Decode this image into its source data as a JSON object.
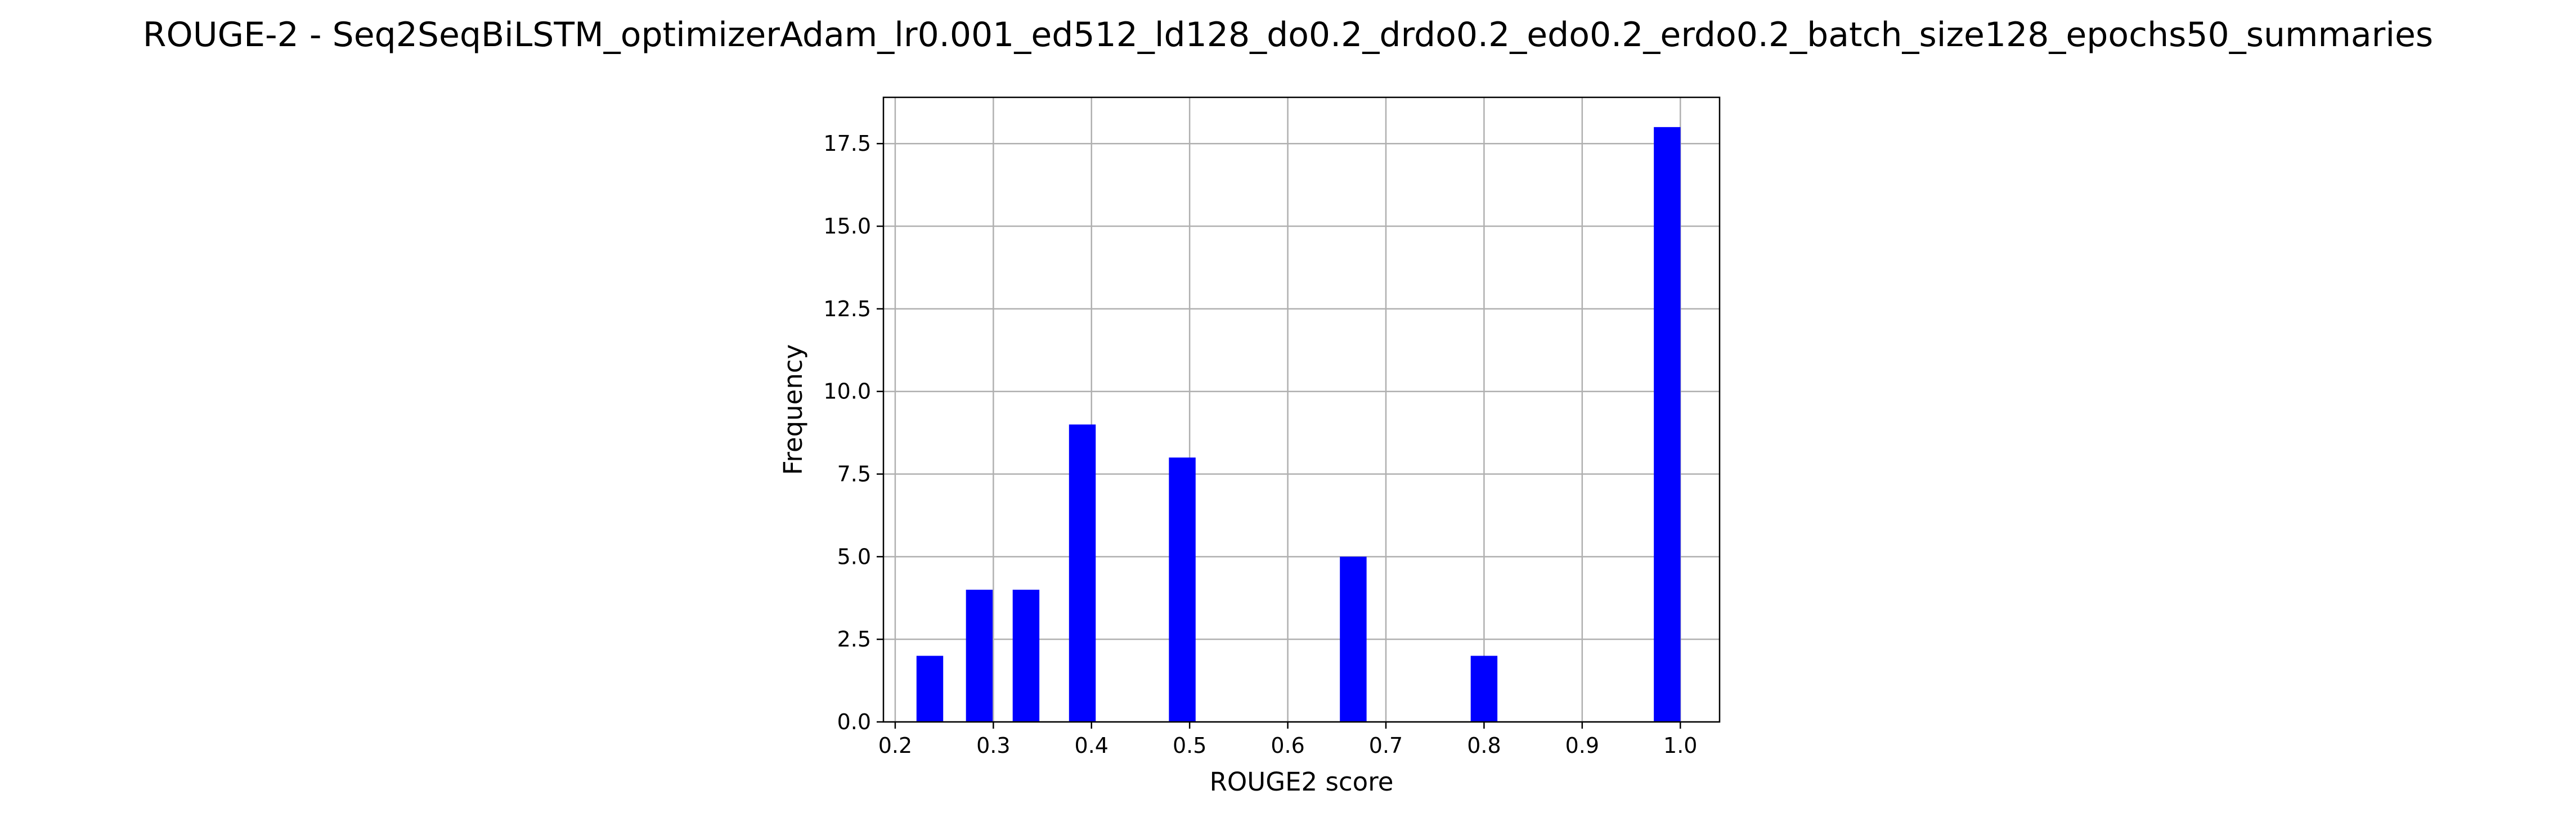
{
  "chart_data": {
    "type": "bar",
    "title": "ROUGE-2 - Seq2SeqBiLSTM_optimizerAdam_lr0.001_ed512_ld128_do0.2_drdo0.2_edo0.2_erdo0.2_batch_size128_epochs50_summaries",
    "xlabel": "ROUGE2 score",
    "ylabel": "Frequency",
    "xlim": [
      0.188,
      1.04
    ],
    "ylim": [
      0,
      18.9
    ],
    "grid": true,
    "bar_color": "#0000ff",
    "bar_width": 0.0272,
    "x_ticks": [
      0.2,
      0.3,
      0.4,
      0.5,
      0.6,
      0.7,
      0.8,
      0.9,
      1.0
    ],
    "x_tick_labels": [
      "0.2",
      "0.3",
      "0.4",
      "0.5",
      "0.6",
      "0.7",
      "0.8",
      "0.9",
      "1.0"
    ],
    "y_ticks": [
      0,
      2.5,
      5,
      7.5,
      10,
      12.5,
      15,
      17.5
    ],
    "y_tick_labels": [
      "0.0",
      "2.5",
      "5.0",
      "7.5",
      "10.0",
      "12.5",
      "15.0",
      "17.5"
    ],
    "bins": [
      {
        "x": 0.2353,
        "value": 2
      },
      {
        "x": 0.2857,
        "value": 4
      },
      {
        "x": 0.3333,
        "value": 4
      },
      {
        "x": 0.3907,
        "value": 9
      },
      {
        "x": 0.4925,
        "value": 8
      },
      {
        "x": 0.6667,
        "value": 5
      },
      {
        "x": 0.8,
        "value": 2
      },
      {
        "x": 0.9866,
        "value": 18
      }
    ]
  }
}
